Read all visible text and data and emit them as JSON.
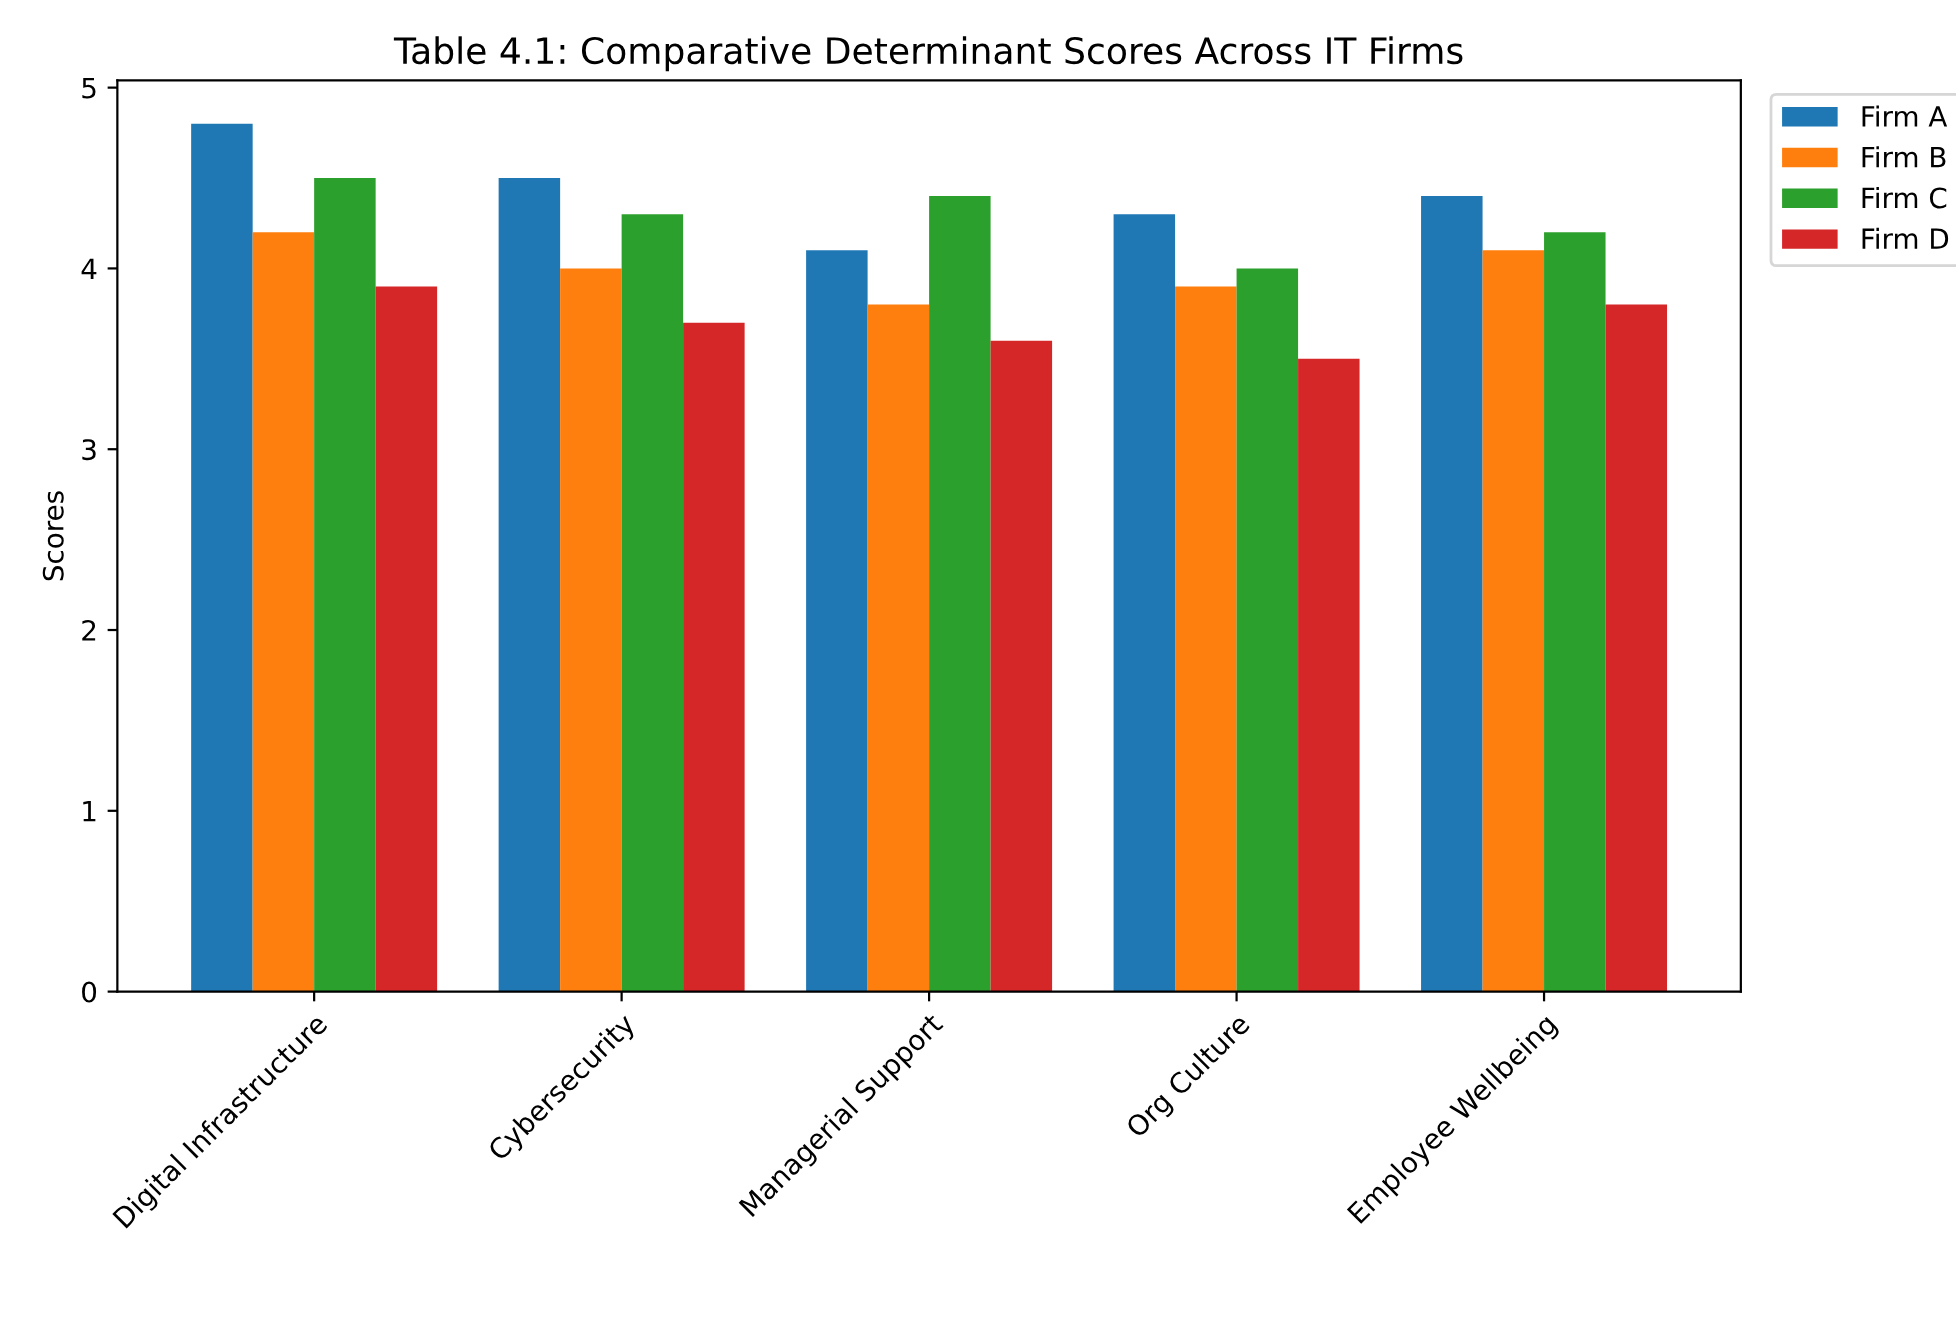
{
  "chart_data": {
    "type": "bar",
    "title": "Table 4.1: Comparative Determinant Scores Across IT Firms",
    "ylabel": "Scores",
    "categories": [
      "Digital Infrastructure",
      "Cybersecurity",
      "Managerial Support",
      "Org Culture",
      "Employee Wellbeing"
    ],
    "series": [
      {
        "name": "Firm A",
        "color": "#1f77b4",
        "values": [
          4.8,
          4.5,
          4.1,
          4.3,
          4.4
        ]
      },
      {
        "name": "Firm B",
        "color": "#ff7f0e",
        "values": [
          4.2,
          4.0,
          3.8,
          3.9,
          4.1
        ]
      },
      {
        "name": "Firm C",
        "color": "#2ca02c",
        "values": [
          4.5,
          4.3,
          4.4,
          4.0,
          4.2
        ]
      },
      {
        "name": "Firm D",
        "color": "#d62728",
        "values": [
          3.9,
          3.7,
          3.6,
          3.5,
          3.8
        ]
      }
    ],
    "ylim": [
      0,
      5.04
    ],
    "yticks": [
      0,
      1,
      2,
      3,
      4,
      5
    ],
    "grid": false,
    "legend": "right"
  }
}
